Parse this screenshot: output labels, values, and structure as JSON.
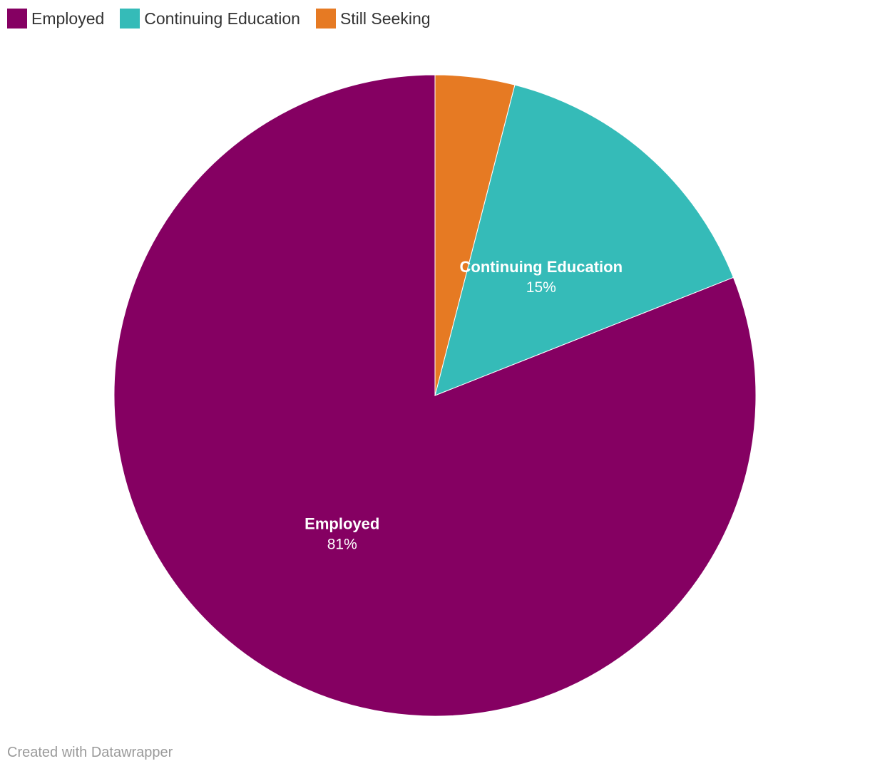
{
  "chart_data": {
    "type": "pie",
    "title": "",
    "series": [
      {
        "name": "Employed",
        "value": 81,
        "label": "81%",
        "color": "#850062"
      },
      {
        "name": "Continuing Education",
        "value": 15,
        "label": "15%",
        "color": "#35bbb8"
      },
      {
        "name": "Still Seeking",
        "value": 4,
        "label": "",
        "color": "#e67a23"
      }
    ],
    "legend": "top-left",
    "slice_order": "counter-clockwise from top"
  },
  "legend": {
    "items": [
      {
        "label": "Employed",
        "color": "#850062"
      },
      {
        "label": "Continuing Education",
        "color": "#35bbb8"
      },
      {
        "label": "Still Seeking",
        "color": "#e67a23"
      }
    ]
  },
  "footer": {
    "credit": "Created with Datawrapper"
  }
}
